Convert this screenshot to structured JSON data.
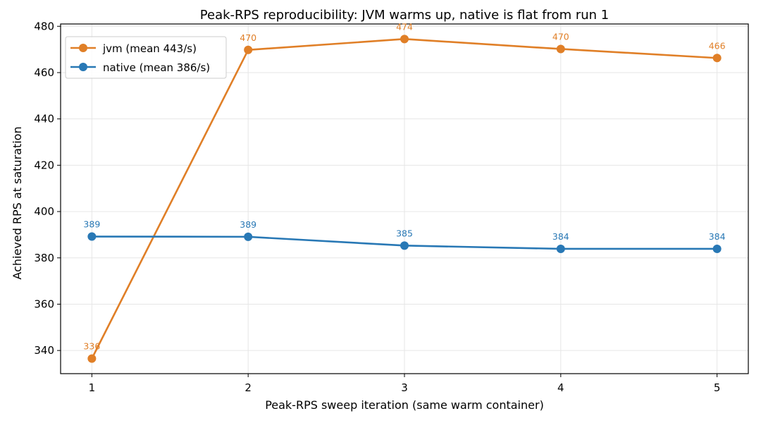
{
  "chart_data": {
    "type": "line",
    "title": "Peak-RPS reproducibility: JVM warms up, native is flat from run 1",
    "xlabel": "Peak-RPS sweep iteration (same warm container)",
    "ylabel": "Achieved RPS at saturation",
    "x": [
      1,
      2,
      3,
      4,
      5
    ],
    "xlim": [
      0.8,
      5.2
    ],
    "ylim": [
      330,
      481
    ],
    "yticks": [
      340,
      360,
      380,
      400,
      420,
      440,
      460,
      480
    ],
    "grid": true,
    "legend_position": "top-left",
    "series": [
      {
        "name": "jvm (mean 443/s)",
        "color": "#e07f27",
        "values": [
          336.5,
          469.8,
          474.5,
          470.2,
          466.3
        ],
        "labels": [
          "336",
          "470",
          "474",
          "470",
          "466"
        ]
      },
      {
        "name": "native (mean 386/s)",
        "color": "#2878b5",
        "values": [
          389.2,
          389.1,
          385.3,
          383.9,
          383.9
        ],
        "labels": [
          "389",
          "389",
          "385",
          "384",
          "384"
        ]
      }
    ]
  }
}
